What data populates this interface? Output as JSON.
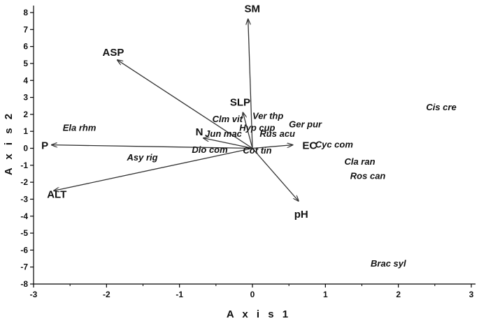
{
  "chart_data": {
    "type": "scatter",
    "subtype": "ordination-biplot",
    "title": "",
    "xlabel": "A x i s  1",
    "ylabel": "A x i s  2",
    "xlim": [
      -3,
      3
    ],
    "ylim": [
      -8,
      8
    ],
    "xticks": [
      -3,
      -2,
      -1,
      0,
      1,
      2,
      3
    ],
    "yticks": [
      8,
      7,
      6,
      5,
      4,
      3,
      2,
      1,
      0,
      -1,
      -2,
      -3,
      -4,
      -5,
      -6,
      -7,
      -8
    ],
    "grid": false,
    "vectors": [
      {
        "label": "SM",
        "x": -0.06,
        "y": 7.6
      },
      {
        "label": "ASP",
        "x": -1.85,
        "y": 5.2
      },
      {
        "label": "SLP",
        "x": -0.13,
        "y": 2.1
      },
      {
        "label": "N",
        "x": -0.67,
        "y": 0.6
      },
      {
        "label": "P",
        "x": -2.75,
        "y": 0.2
      },
      {
        "label": "EC",
        "x": 0.55,
        "y": 0.2
      },
      {
        "label": "ALT",
        "x": -2.72,
        "y": -2.5
      },
      {
        "label": "pH",
        "x": 0.63,
        "y": -3.1
      }
    ],
    "species": [
      {
        "label": "Cis cre",
        "x": 2.38,
        "y": 2.4
      },
      {
        "label": "Ela rhm",
        "x": -2.6,
        "y": 1.2
      },
      {
        "label": "Clm vit",
        "x": -0.55,
        "y": 1.7
      },
      {
        "label": "Ver thp",
        "x": 0.0,
        "y": 1.9
      },
      {
        "label": "Ger pur",
        "x": 0.5,
        "y": 1.4
      },
      {
        "label": "Hyp cup",
        "x": -0.18,
        "y": 1.2
      },
      {
        "label": "Jun mac",
        "x": -0.65,
        "y": 0.85
      },
      {
        "label": "Rus acu",
        "x": 0.1,
        "y": 0.85
      },
      {
        "label": "Cyc com",
        "x": 0.86,
        "y": 0.2
      },
      {
        "label": "Dio com",
        "x": -0.83,
        "y": -0.1
      },
      {
        "label": "Cot tin",
        "x": -0.13,
        "y": -0.15
      },
      {
        "label": "Asy rig",
        "x": -1.72,
        "y": -0.55
      },
      {
        "label": "Cla ran",
        "x": 1.26,
        "y": -0.8
      },
      {
        "label": "Ros can",
        "x": 1.34,
        "y": -1.65
      },
      {
        "label": "Brac syl",
        "x": 1.62,
        "y": -6.8
      }
    ]
  }
}
